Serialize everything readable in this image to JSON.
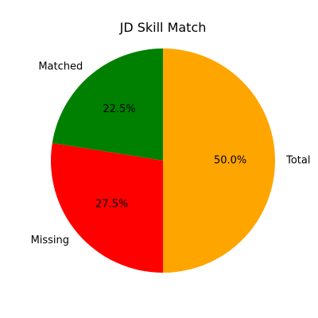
{
  "chart_data": {
    "type": "pie",
    "title": "JD Skill Match",
    "start_angle_deg": 90,
    "direction": "counterclockwise",
    "slices": [
      {
        "label": "Matched",
        "value": 22.5,
        "pct_label": "22.5%",
        "color": "#008000"
      },
      {
        "label": "Missing",
        "value": 27.5,
        "pct_label": "27.5%",
        "color": "#ff0000"
      },
      {
        "label": "Total",
        "value": 50.0,
        "pct_label": "50.0%",
        "color": "#ffa500"
      }
    ]
  }
}
